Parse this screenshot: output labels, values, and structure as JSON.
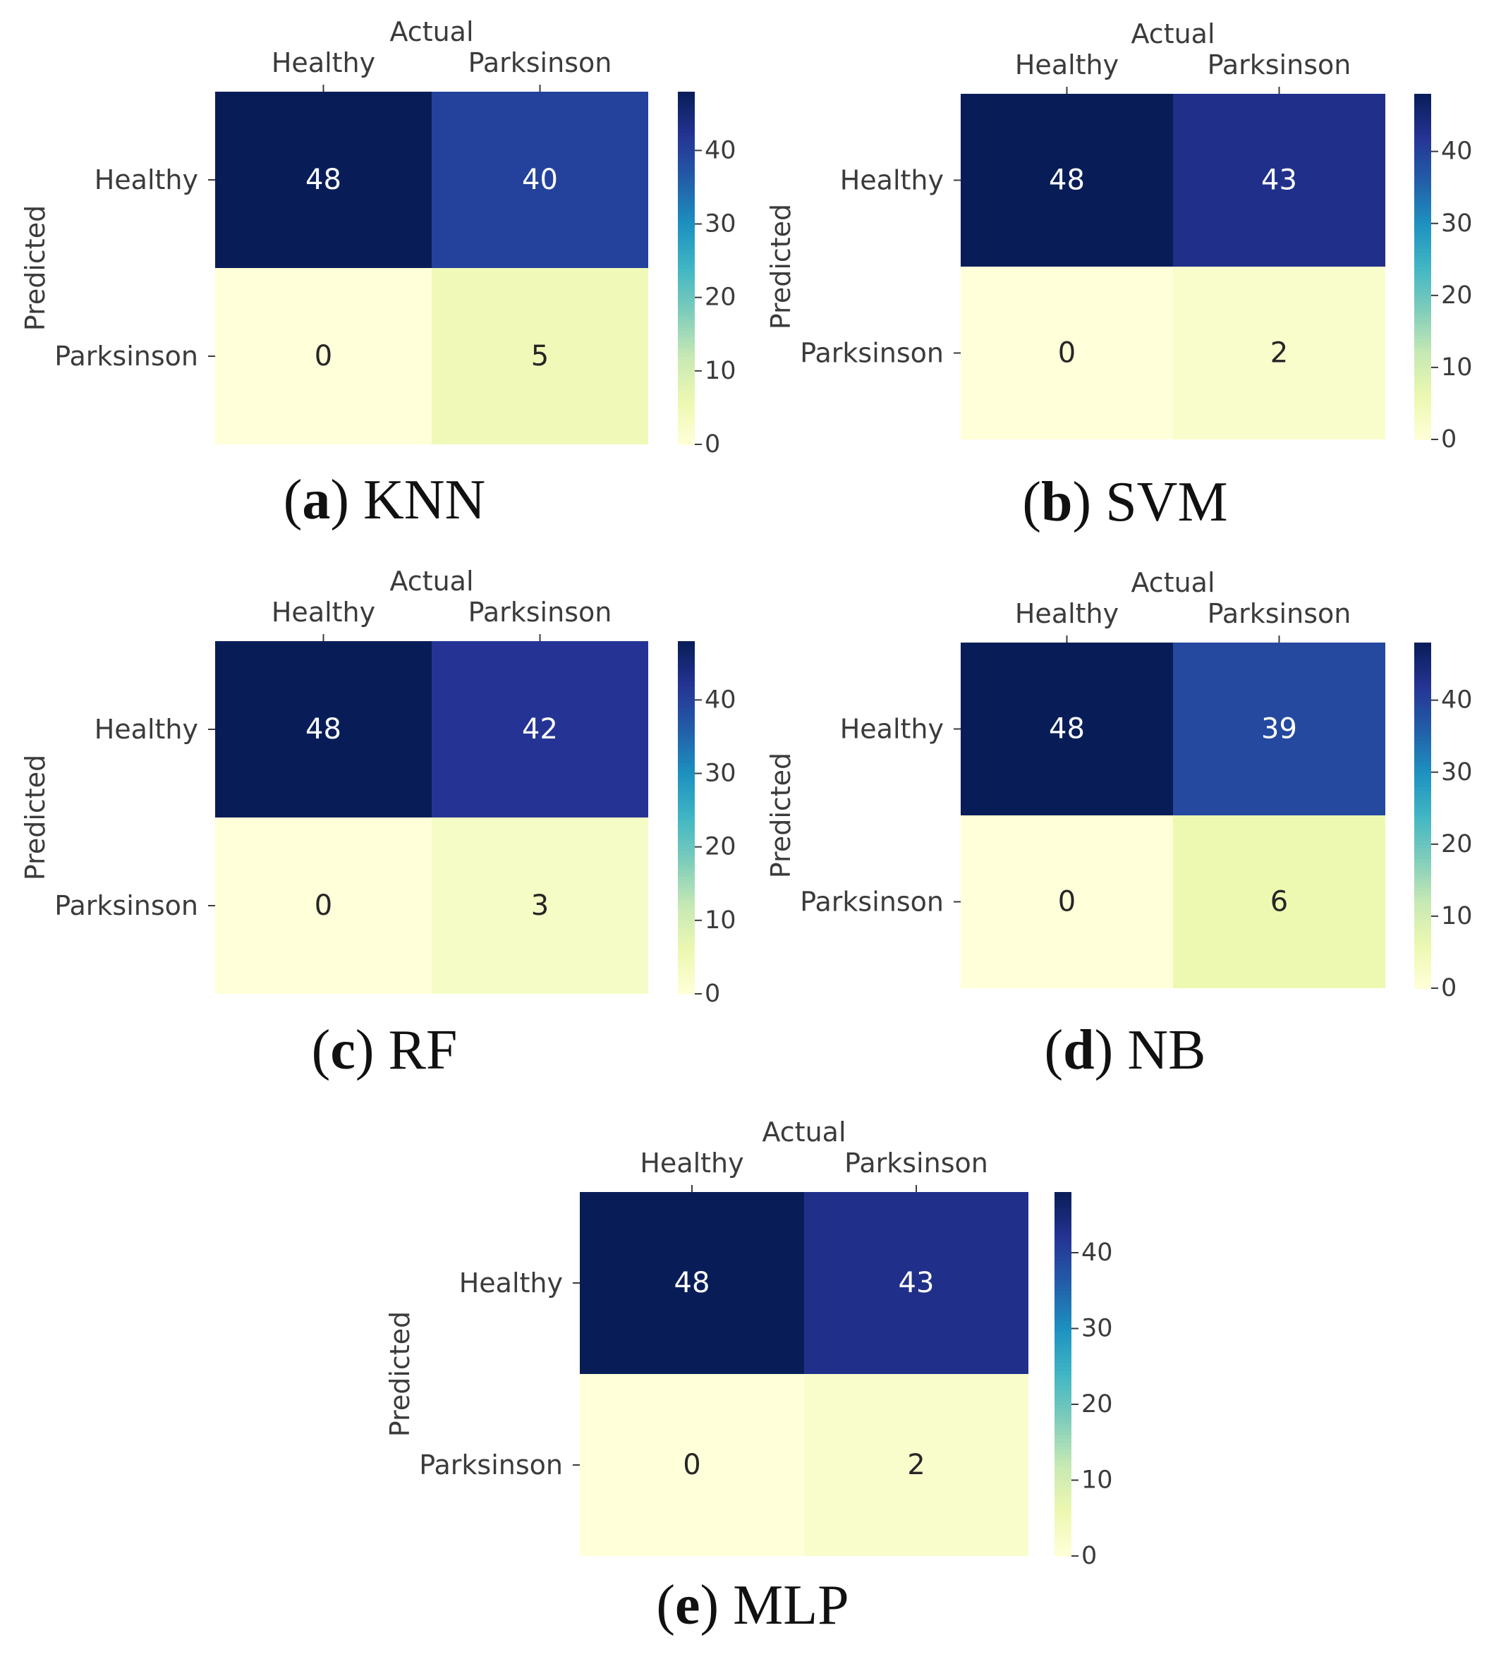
{
  "chart_data": [
    {
      "type": "heatmap",
      "caption": {
        "open": "(",
        "letter": "a",
        "close": ")",
        "text": "KNN"
      },
      "xlabel": "Actual",
      "ylabel": "Predicted",
      "x_categories": [
        "Healthy",
        "Parksinson"
      ],
      "y_categories": [
        "Healthy",
        "Parksinson"
      ],
      "values": [
        [
          48,
          40
        ],
        [
          0,
          5
        ]
      ],
      "colorbar": {
        "min": 0,
        "max": 48,
        "ticks": [
          0,
          10,
          20,
          30,
          40
        ],
        "colormap": "YlGnBu"
      }
    },
    {
      "type": "heatmap",
      "caption": {
        "open": "(",
        "letter": "b",
        "close": ")",
        "text": "SVM"
      },
      "xlabel": "Actual",
      "ylabel": "Predicted",
      "x_categories": [
        "Healthy",
        "Parksinson"
      ],
      "y_categories": [
        "Healthy",
        "Parksinson"
      ],
      "values": [
        [
          48,
          43
        ],
        [
          0,
          2
        ]
      ],
      "colorbar": {
        "min": 0,
        "max": 48,
        "ticks": [
          0,
          10,
          20,
          30,
          40
        ],
        "colormap": "YlGnBu"
      }
    },
    {
      "type": "heatmap",
      "caption": {
        "open": "(",
        "letter": "c",
        "close": ")",
        "text": "RF"
      },
      "xlabel": "Actual",
      "ylabel": "Predicted",
      "x_categories": [
        "Healthy",
        "Parksinson"
      ],
      "y_categories": [
        "Healthy",
        "Parksinson"
      ],
      "values": [
        [
          48,
          42
        ],
        [
          0,
          3
        ]
      ],
      "colorbar": {
        "min": 0,
        "max": 48,
        "ticks": [
          0,
          10,
          20,
          30,
          40
        ],
        "colormap": "YlGnBu"
      }
    },
    {
      "type": "heatmap",
      "caption": {
        "open": "(",
        "letter": "d",
        "close": ")",
        "text": "NB"
      },
      "xlabel": "Actual",
      "ylabel": "Predicted",
      "x_categories": [
        "Healthy",
        "Parksinson"
      ],
      "y_categories": [
        "Healthy",
        "Parksinson"
      ],
      "values": [
        [
          48,
          39
        ],
        [
          0,
          6
        ]
      ],
      "colorbar": {
        "min": 0,
        "max": 48,
        "ticks": [
          0,
          10,
          20,
          30,
          40
        ],
        "colormap": "YlGnBu"
      }
    },
    {
      "type": "heatmap",
      "caption": {
        "open": "(",
        "letter": "e",
        "close": ")",
        "text": "MLP"
      },
      "xlabel": "Actual",
      "ylabel": "Predicted",
      "x_categories": [
        "Healthy",
        "Parksinson"
      ],
      "y_categories": [
        "Healthy",
        "Parksinson"
      ],
      "values": [
        [
          48,
          43
        ],
        [
          0,
          2
        ]
      ],
      "colorbar": {
        "min": 0,
        "max": 48,
        "ticks": [
          0,
          10,
          20,
          30,
          40
        ],
        "colormap": "YlGnBu"
      }
    }
  ]
}
